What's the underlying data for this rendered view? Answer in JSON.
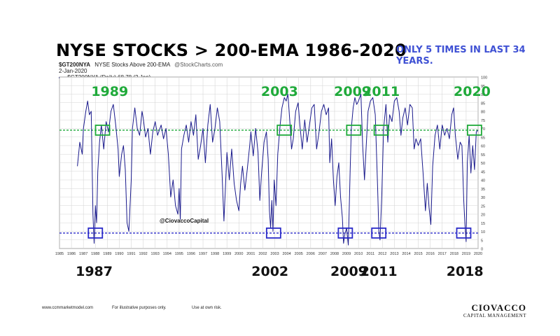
{
  "header": {
    "title": "NYSE STOCKS > 200-EMA 1986-2020",
    "note": "ONLY 5 TIMES IN LAST 34 YEARS."
  },
  "chart_meta": {
    "symbol": "$GT200NYA",
    "description": "NYSE Stocks Above 200-EMA",
    "source": "@StockCharts.com",
    "date": "2-Jan-2020",
    "legend": "$GT200NYA (Daily) 68.78 (2 Jan)",
    "watermark": "@CiovaccoCapital"
  },
  "footer": {
    "site": "www.ccmmarketmodel.com",
    "disclaimer": "For illustrative purposes only.",
    "risk": "Use at own risk.",
    "brand_name": "CIOVACCO",
    "brand_sub": "CAPITAL MANAGEMENT"
  },
  "colors": {
    "line": "#1a1a8c",
    "upper_ref": "#1faa3a",
    "lower_ref": "#2a2ac8",
    "grid": "#d6d6d6"
  },
  "chart_data": {
    "type": "line",
    "title": "NYSE Stocks Above 200-EMA",
    "xlim": [
      1985,
      2020
    ],
    "ylim": [
      0,
      100
    ],
    "x_ticks": [
      1985,
      1986,
      1987,
      1988,
      1989,
      1990,
      1991,
      1992,
      1993,
      1994,
      1995,
      1996,
      1997,
      1998,
      1999,
      2000,
      2001,
      2002,
      2003,
      2004,
      2005,
      2006,
      2007,
      2008,
      2009,
      2010,
      2011,
      2012,
      2013,
      2014,
      2015,
      2016,
      2017,
      2018,
      2019,
      2020
    ],
    "y_ticks": [
      0,
      5,
      10,
      15,
      20,
      25,
      30,
      35,
      40,
      45,
      50,
      55,
      60,
      65,
      70,
      75,
      80,
      85,
      90,
      95,
      100
    ],
    "reference_lines": [
      {
        "name": "upper",
        "value": 69,
        "style": "dashed"
      },
      {
        "name": "lower",
        "value": 9,
        "style": "dashed"
      }
    ],
    "upper_labels": [
      {
        "x": 1989.2,
        "label": "1989"
      },
      {
        "x": 2003.4,
        "label": "2003"
      },
      {
        "x": 2009.5,
        "label": "2009"
      },
      {
        "x": 2011.9,
        "label": "2011"
      },
      {
        "x": 2019.5,
        "label": "2020"
      }
    ],
    "lower_labels": [
      {
        "x": 1987.9,
        "label": "1987"
      },
      {
        "x": 2002.6,
        "label": "2002"
      },
      {
        "x": 2009.2,
        "label": "2009"
      },
      {
        "x": 2011.7,
        "label": "2011"
      },
      {
        "x": 2018.9,
        "label": "2018"
      }
    ],
    "upper_boxes": [
      1988.6,
      2003.8,
      2009.6,
      2011.9,
      2019.7
    ],
    "lower_boxes": [
      1988.0,
      2002.9,
      2008.9,
      2011.7,
      2018.8
    ],
    "series": [
      {
        "name": "$GT200NYA",
        "points": [
          [
            1986.5,
            48
          ],
          [
            1986.7,
            62
          ],
          [
            1986.9,
            55
          ],
          [
            1987.0,
            70
          ],
          [
            1987.2,
            80
          ],
          [
            1987.35,
            86
          ],
          [
            1987.5,
            78
          ],
          [
            1987.65,
            80
          ],
          [
            1987.8,
            20
          ],
          [
            1987.9,
            3
          ],
          [
            1988.0,
            25
          ],
          [
            1988.1,
            15
          ],
          [
            1988.2,
            45
          ],
          [
            1988.35,
            62
          ],
          [
            1988.5,
            72
          ],
          [
            1988.7,
            58
          ],
          [
            1988.9,
            74
          ],
          [
            1989.1,
            68
          ],
          [
            1989.3,
            80
          ],
          [
            1989.5,
            84
          ],
          [
            1989.7,
            72
          ],
          [
            1989.9,
            58
          ],
          [
            1990.0,
            42
          ],
          [
            1990.2,
            55
          ],
          [
            1990.35,
            60
          ],
          [
            1990.5,
            46
          ],
          [
            1990.65,
            15
          ],
          [
            1990.8,
            10
          ],
          [
            1991.0,
            40
          ],
          [
            1991.1,
            70
          ],
          [
            1991.3,
            82
          ],
          [
            1991.5,
            70
          ],
          [
            1991.7,
            66
          ],
          [
            1991.9,
            80
          ],
          [
            1992.0,
            76
          ],
          [
            1992.2,
            65
          ],
          [
            1992.4,
            70
          ],
          [
            1992.6,
            55
          ],
          [
            1992.8,
            68
          ],
          [
            1993.0,
            74
          ],
          [
            1993.2,
            66
          ],
          [
            1993.5,
            72
          ],
          [
            1993.7,
            64
          ],
          [
            1993.9,
            70
          ],
          [
            1994.1,
            55
          ],
          [
            1994.3,
            30
          ],
          [
            1994.5,
            40
          ],
          [
            1994.7,
            25
          ],
          [
            1994.9,
            20
          ],
          [
            1995.0,
            35
          ],
          [
            1995.1,
            17
          ],
          [
            1995.2,
            58
          ],
          [
            1995.4,
            66
          ],
          [
            1995.6,
            72
          ],
          [
            1995.8,
            62
          ],
          [
            1996.0,
            74
          ],
          [
            1996.2,
            66
          ],
          [
            1996.4,
            78
          ],
          [
            1996.6,
            52
          ],
          [
            1996.8,
            60
          ],
          [
            1997.0,
            70
          ],
          [
            1997.2,
            50
          ],
          [
            1997.4,
            72
          ],
          [
            1997.6,
            84
          ],
          [
            1997.8,
            62
          ],
          [
            1998.0,
            70
          ],
          [
            1998.2,
            82
          ],
          [
            1998.4,
            74
          ],
          [
            1998.6,
            42
          ],
          [
            1998.75,
            16
          ],
          [
            1998.9,
            40
          ],
          [
            1999.0,
            56
          ],
          [
            1999.2,
            40
          ],
          [
            1999.4,
            58
          ],
          [
            1999.6,
            38
          ],
          [
            1999.8,
            28
          ],
          [
            2000.0,
            22
          ],
          [
            2000.15,
            38
          ],
          [
            2000.3,
            48
          ],
          [
            2000.5,
            34
          ],
          [
            2000.7,
            46
          ],
          [
            2000.9,
            60
          ],
          [
            2001.0,
            68
          ],
          [
            2001.2,
            54
          ],
          [
            2001.4,
            70
          ],
          [
            2001.6,
            56
          ],
          [
            2001.75,
            28
          ],
          [
            2001.9,
            44
          ],
          [
            2002.1,
            62
          ],
          [
            2002.3,
            68
          ],
          [
            2002.45,
            52
          ],
          [
            2002.55,
            22
          ],
          [
            2002.65,
            12
          ],
          [
            2002.75,
            28
          ],
          [
            2002.85,
            10
          ],
          [
            2002.95,
            40
          ],
          [
            2003.1,
            25
          ],
          [
            2003.25,
            55
          ],
          [
            2003.45,
            72
          ],
          [
            2003.6,
            82
          ],
          [
            2003.8,
            88
          ],
          [
            2003.95,
            86
          ],
          [
            2004.1,
            90
          ],
          [
            2004.25,
            75
          ],
          [
            2004.4,
            58
          ],
          [
            2004.55,
            64
          ],
          [
            2004.75,
            80
          ],
          [
            2004.95,
            85
          ],
          [
            2005.1,
            72
          ],
          [
            2005.3,
            58
          ],
          [
            2005.5,
            75
          ],
          [
            2005.7,
            62
          ],
          [
            2005.9,
            72
          ],
          [
            2006.1,
            82
          ],
          [
            2006.3,
            84
          ],
          [
            2006.5,
            58
          ],
          [
            2006.7,
            68
          ],
          [
            2006.9,
            80
          ],
          [
            2007.1,
            84
          ],
          [
            2007.3,
            78
          ],
          [
            2007.5,
            82
          ],
          [
            2007.6,
            50
          ],
          [
            2007.75,
            64
          ],
          [
            2007.9,
            40
          ],
          [
            2008.05,
            25
          ],
          [
            2008.2,
            42
          ],
          [
            2008.35,
            50
          ],
          [
            2008.5,
            30
          ],
          [
            2008.65,
            18
          ],
          [
            2008.75,
            3
          ],
          [
            2008.85,
            8
          ],
          [
            2009.0,
            12
          ],
          [
            2009.15,
            2
          ],
          [
            2009.3,
            45
          ],
          [
            2009.4,
            70
          ],
          [
            2009.55,
            82
          ],
          [
            2009.7,
            88
          ],
          [
            2009.85,
            84
          ],
          [
            2010.0,
            86
          ],
          [
            2010.2,
            90
          ],
          [
            2010.35,
            60
          ],
          [
            2010.5,
            40
          ],
          [
            2010.65,
            60
          ],
          [
            2010.8,
            80
          ],
          [
            2011.0,
            86
          ],
          [
            2011.2,
            88
          ],
          [
            2011.4,
            78
          ],
          [
            2011.6,
            35
          ],
          [
            2011.7,
            10
          ],
          [
            2011.8,
            5
          ],
          [
            2011.95,
            32
          ],
          [
            2012.1,
            70
          ],
          [
            2012.3,
            84
          ],
          [
            2012.45,
            62
          ],
          [
            2012.6,
            78
          ],
          [
            2012.8,
            74
          ],
          [
            2013.0,
            86
          ],
          [
            2013.2,
            88
          ],
          [
            2013.4,
            80
          ],
          [
            2013.55,
            66
          ],
          [
            2013.7,
            76
          ],
          [
            2013.9,
            82
          ],
          [
            2014.1,
            72
          ],
          [
            2014.3,
            84
          ],
          [
            2014.5,
            82
          ],
          [
            2014.65,
            58
          ],
          [
            2014.8,
            64
          ],
          [
            2015.0,
            60
          ],
          [
            2015.2,
            64
          ],
          [
            2015.4,
            44
          ],
          [
            2015.6,
            22
          ],
          [
            2015.75,
            38
          ],
          [
            2015.9,
            24
          ],
          [
            2016.05,
            14
          ],
          [
            2016.2,
            48
          ],
          [
            2016.4,
            66
          ],
          [
            2016.6,
            72
          ],
          [
            2016.8,
            58
          ],
          [
            2017.0,
            72
          ],
          [
            2017.2,
            66
          ],
          [
            2017.4,
            70
          ],
          [
            2017.6,
            64
          ],
          [
            2017.8,
            78
          ],
          [
            2017.95,
            82
          ],
          [
            2018.1,
            66
          ],
          [
            2018.3,
            52
          ],
          [
            2018.5,
            62
          ],
          [
            2018.65,
            60
          ],
          [
            2018.8,
            28
          ],
          [
            2018.9,
            14
          ],
          [
            2019.0,
            4
          ],
          [
            2019.1,
            50
          ],
          [
            2019.25,
            66
          ],
          [
            2019.4,
            44
          ],
          [
            2019.55,
            60
          ],
          [
            2019.7,
            46
          ],
          [
            2019.85,
            68
          ],
          [
            2020.0,
            69
          ]
        ]
      }
    ]
  }
}
